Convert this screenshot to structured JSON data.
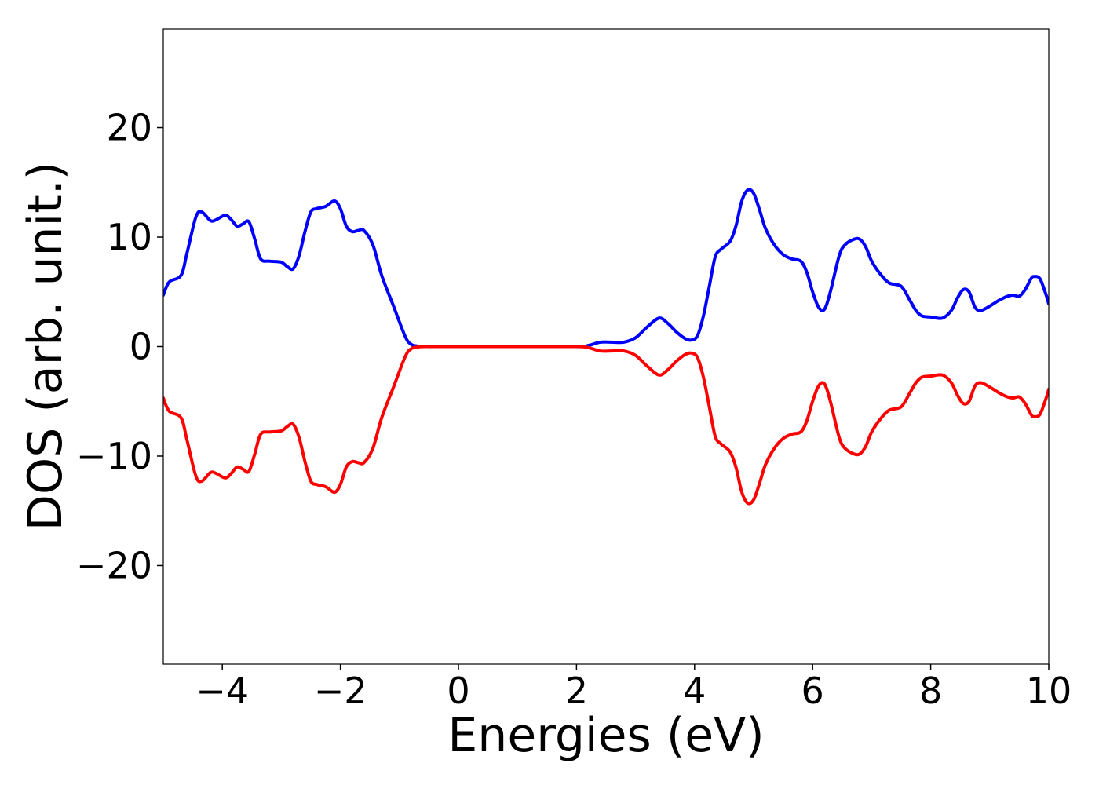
{
  "chart_data": {
    "type": "line",
    "title": "",
    "xlabel": "Energies (eV)",
    "ylabel": "DOS (arb. unit.)",
    "xlim": [
      -5,
      10
    ],
    "ylim": [
      -29,
      29
    ],
    "xticks": [
      -4,
      -2,
      0,
      2,
      4,
      6,
      8,
      10
    ],
    "yticks": [
      -20,
      -10,
      0,
      10,
      20
    ],
    "grid": false,
    "legend": "none",
    "series": [
      {
        "color": "#0000ff",
        "x": [
          -5.0,
          -4.9,
          -4.7,
          -4.6,
          -4.45,
          -4.35,
          -4.2,
          -4.1,
          -3.95,
          -3.85,
          -3.75,
          -3.65,
          -3.55,
          -3.45,
          -3.35,
          -3.2,
          -3.0,
          -2.9,
          -2.8,
          -2.7,
          -2.6,
          -2.5,
          -2.4,
          -2.25,
          -2.1,
          -2.0,
          -1.9,
          -1.8,
          -1.7,
          -1.6,
          -1.45,
          -1.3,
          -1.1,
          -0.9,
          -0.8,
          -0.7,
          -0.6,
          -0.5,
          0.0,
          1.0,
          2.0,
          2.2,
          2.4,
          2.6,
          2.8,
          3.0,
          3.2,
          3.4,
          3.55,
          3.7,
          3.85,
          3.95,
          4.05,
          4.15,
          4.25,
          4.35,
          4.45,
          4.6,
          4.7,
          4.8,
          4.9,
          5.0,
          5.1,
          5.2,
          5.35,
          5.5,
          5.65,
          5.8,
          5.9,
          6.0,
          6.1,
          6.2,
          6.3,
          6.45,
          6.55,
          6.7,
          6.8,
          6.9,
          7.0,
          7.15,
          7.3,
          7.5,
          7.65,
          7.75,
          7.85,
          8.0,
          8.2,
          8.35,
          8.45,
          8.55,
          8.65,
          8.75,
          8.85,
          9.0,
          9.15,
          9.3,
          9.4,
          9.5,
          9.6,
          9.7,
          9.75,
          9.85,
          9.95,
          10.0
        ],
        "y": [
          4.7,
          5.9,
          6.5,
          8.5,
          11.8,
          12.3,
          11.5,
          11.6,
          12.0,
          11.6,
          11.0,
          11.2,
          11.4,
          9.8,
          8.0,
          7.8,
          7.7,
          7.3,
          7.1,
          8.3,
          10.5,
          12.3,
          12.6,
          12.8,
          13.3,
          12.6,
          11.0,
          10.5,
          10.6,
          10.6,
          9.3,
          6.5,
          3.7,
          0.9,
          0.2,
          0.05,
          0.0,
          0.0,
          0.0,
          0.0,
          0.0,
          0.1,
          0.4,
          0.4,
          0.4,
          0.8,
          1.8,
          2.6,
          2.1,
          1.3,
          0.7,
          0.6,
          1.0,
          2.8,
          5.5,
          8.2,
          8.9,
          9.6,
          11.0,
          13.3,
          14.3,
          14.0,
          12.5,
          10.8,
          9.3,
          8.4,
          8.0,
          7.8,
          6.8,
          5.0,
          3.6,
          3.4,
          5.0,
          8.3,
          9.3,
          9.8,
          9.8,
          9.1,
          7.8,
          6.6,
          5.8,
          5.5,
          4.2,
          3.3,
          2.8,
          2.7,
          2.6,
          3.3,
          4.4,
          5.2,
          5.0,
          3.6,
          3.3,
          3.7,
          4.2,
          4.6,
          4.7,
          4.6,
          5.2,
          6.2,
          6.4,
          6.2,
          4.8,
          3.9
        ]
      },
      {
        "color": "#ff0000",
        "x": [
          -5.0,
          -4.9,
          -4.7,
          -4.6,
          -4.45,
          -4.35,
          -4.2,
          -4.1,
          -3.95,
          -3.85,
          -3.75,
          -3.65,
          -3.55,
          -3.45,
          -3.35,
          -3.2,
          -3.0,
          -2.9,
          -2.8,
          -2.7,
          -2.6,
          -2.5,
          -2.4,
          -2.25,
          -2.1,
          -2.0,
          -1.9,
          -1.8,
          -1.7,
          -1.6,
          -1.45,
          -1.3,
          -1.1,
          -0.9,
          -0.8,
          -0.7,
          -0.6,
          -0.5,
          0.0,
          1.0,
          2.0,
          2.2,
          2.4,
          2.6,
          2.8,
          3.0,
          3.2,
          3.4,
          3.55,
          3.7,
          3.85,
          3.95,
          4.05,
          4.15,
          4.25,
          4.35,
          4.45,
          4.6,
          4.7,
          4.8,
          4.9,
          5.0,
          5.1,
          5.2,
          5.35,
          5.5,
          5.65,
          5.8,
          5.9,
          6.0,
          6.1,
          6.2,
          6.3,
          6.45,
          6.55,
          6.7,
          6.8,
          6.9,
          7.0,
          7.15,
          7.3,
          7.5,
          7.65,
          7.75,
          7.85,
          8.0,
          8.2,
          8.35,
          8.45,
          8.55,
          8.65,
          8.75,
          8.85,
          9.0,
          9.15,
          9.3,
          9.4,
          9.5,
          9.6,
          9.7,
          9.75,
          9.85,
          9.95,
          10.0
        ],
        "y": [
          -4.7,
          -5.9,
          -6.5,
          -8.5,
          -11.8,
          -12.3,
          -11.5,
          -11.6,
          -12.0,
          -11.6,
          -11.0,
          -11.2,
          -11.4,
          -9.8,
          -8.0,
          -7.8,
          -7.7,
          -7.3,
          -7.1,
          -8.3,
          -10.5,
          -12.3,
          -12.6,
          -12.8,
          -13.3,
          -12.6,
          -11.0,
          -10.5,
          -10.6,
          -10.6,
          -9.3,
          -6.5,
          -3.7,
          -0.9,
          -0.2,
          -0.05,
          0.0,
          0.0,
          0.0,
          0.0,
          0.0,
          -0.1,
          -0.4,
          -0.4,
          -0.4,
          -0.8,
          -1.8,
          -2.6,
          -2.1,
          -1.3,
          -0.7,
          -0.6,
          -1.0,
          -2.8,
          -5.5,
          -8.2,
          -8.9,
          -9.6,
          -11.0,
          -13.3,
          -14.3,
          -14.0,
          -12.5,
          -10.8,
          -9.3,
          -8.4,
          -8.0,
          -7.8,
          -6.8,
          -5.0,
          -3.6,
          -3.4,
          -5.0,
          -8.3,
          -9.3,
          -9.8,
          -9.8,
          -9.1,
          -7.8,
          -6.6,
          -5.8,
          -5.5,
          -4.2,
          -3.3,
          -2.8,
          -2.7,
          -2.6,
          -3.3,
          -4.4,
          -5.2,
          -5.0,
          -3.6,
          -3.3,
          -3.7,
          -4.2,
          -4.6,
          -4.7,
          -4.6,
          -5.2,
          -6.2,
          -6.4,
          -6.2,
          -4.8,
          -3.9
        ]
      }
    ]
  }
}
